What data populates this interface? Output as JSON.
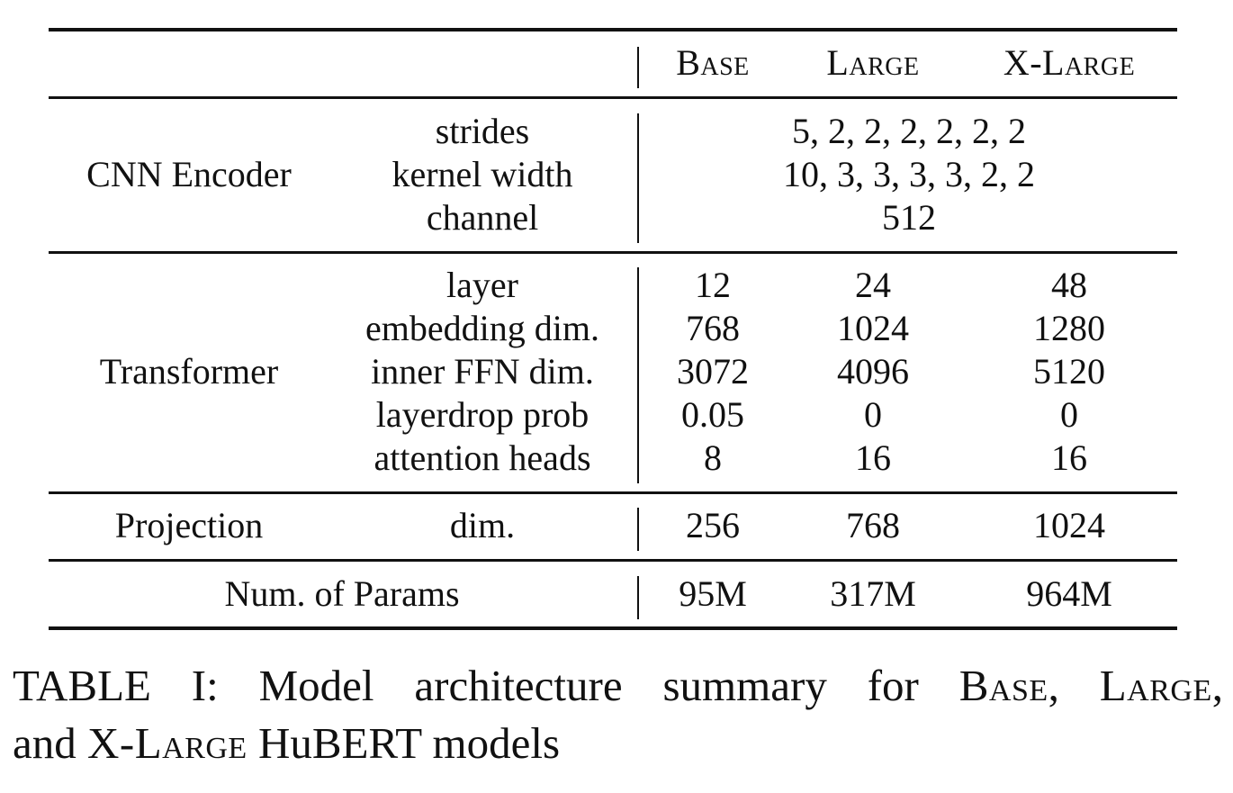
{
  "table": {
    "header": {
      "col_base": "Base",
      "col_large": "Large",
      "col_xlarge": "X-Large"
    },
    "cnn": {
      "group": "CNN Encoder",
      "rows": [
        {
          "label": "strides",
          "value": "5, 2, 2, 2, 2, 2, 2"
        },
        {
          "label": "kernel width",
          "value": "10, 3, 3, 3, 3, 2, 2"
        },
        {
          "label": "channel",
          "value": "512"
        }
      ]
    },
    "transformer": {
      "group": "Transformer",
      "rows": [
        {
          "label": "layer",
          "base": "12",
          "large": "24",
          "xlarge": "48"
        },
        {
          "label": "embedding dim.",
          "base": "768",
          "large": "1024",
          "xlarge": "1280"
        },
        {
          "label": "inner FFN dim.",
          "base": "3072",
          "large": "4096",
          "xlarge": "5120"
        },
        {
          "label": "layerdrop prob",
          "base": "0.05",
          "large": "0",
          "xlarge": "0"
        },
        {
          "label": "attention heads",
          "base": "8",
          "large": "16",
          "xlarge": "16"
        }
      ]
    },
    "projection": {
      "group": "Projection",
      "label": "dim.",
      "base": "256",
      "large": "768",
      "xlarge": "1024"
    },
    "params": {
      "label": "Num. of Params",
      "base": "95M",
      "large": "317M",
      "xlarge": "964M"
    }
  },
  "caption": {
    "prefix": "TABLE I: Model architecture summary for ",
    "base": "Base",
    "sep1": ", ",
    "large": "Large",
    "sep2": ",",
    "line2_start": "and ",
    "xlarge": "X-Large",
    "line2_end": " HuBERT models"
  }
}
